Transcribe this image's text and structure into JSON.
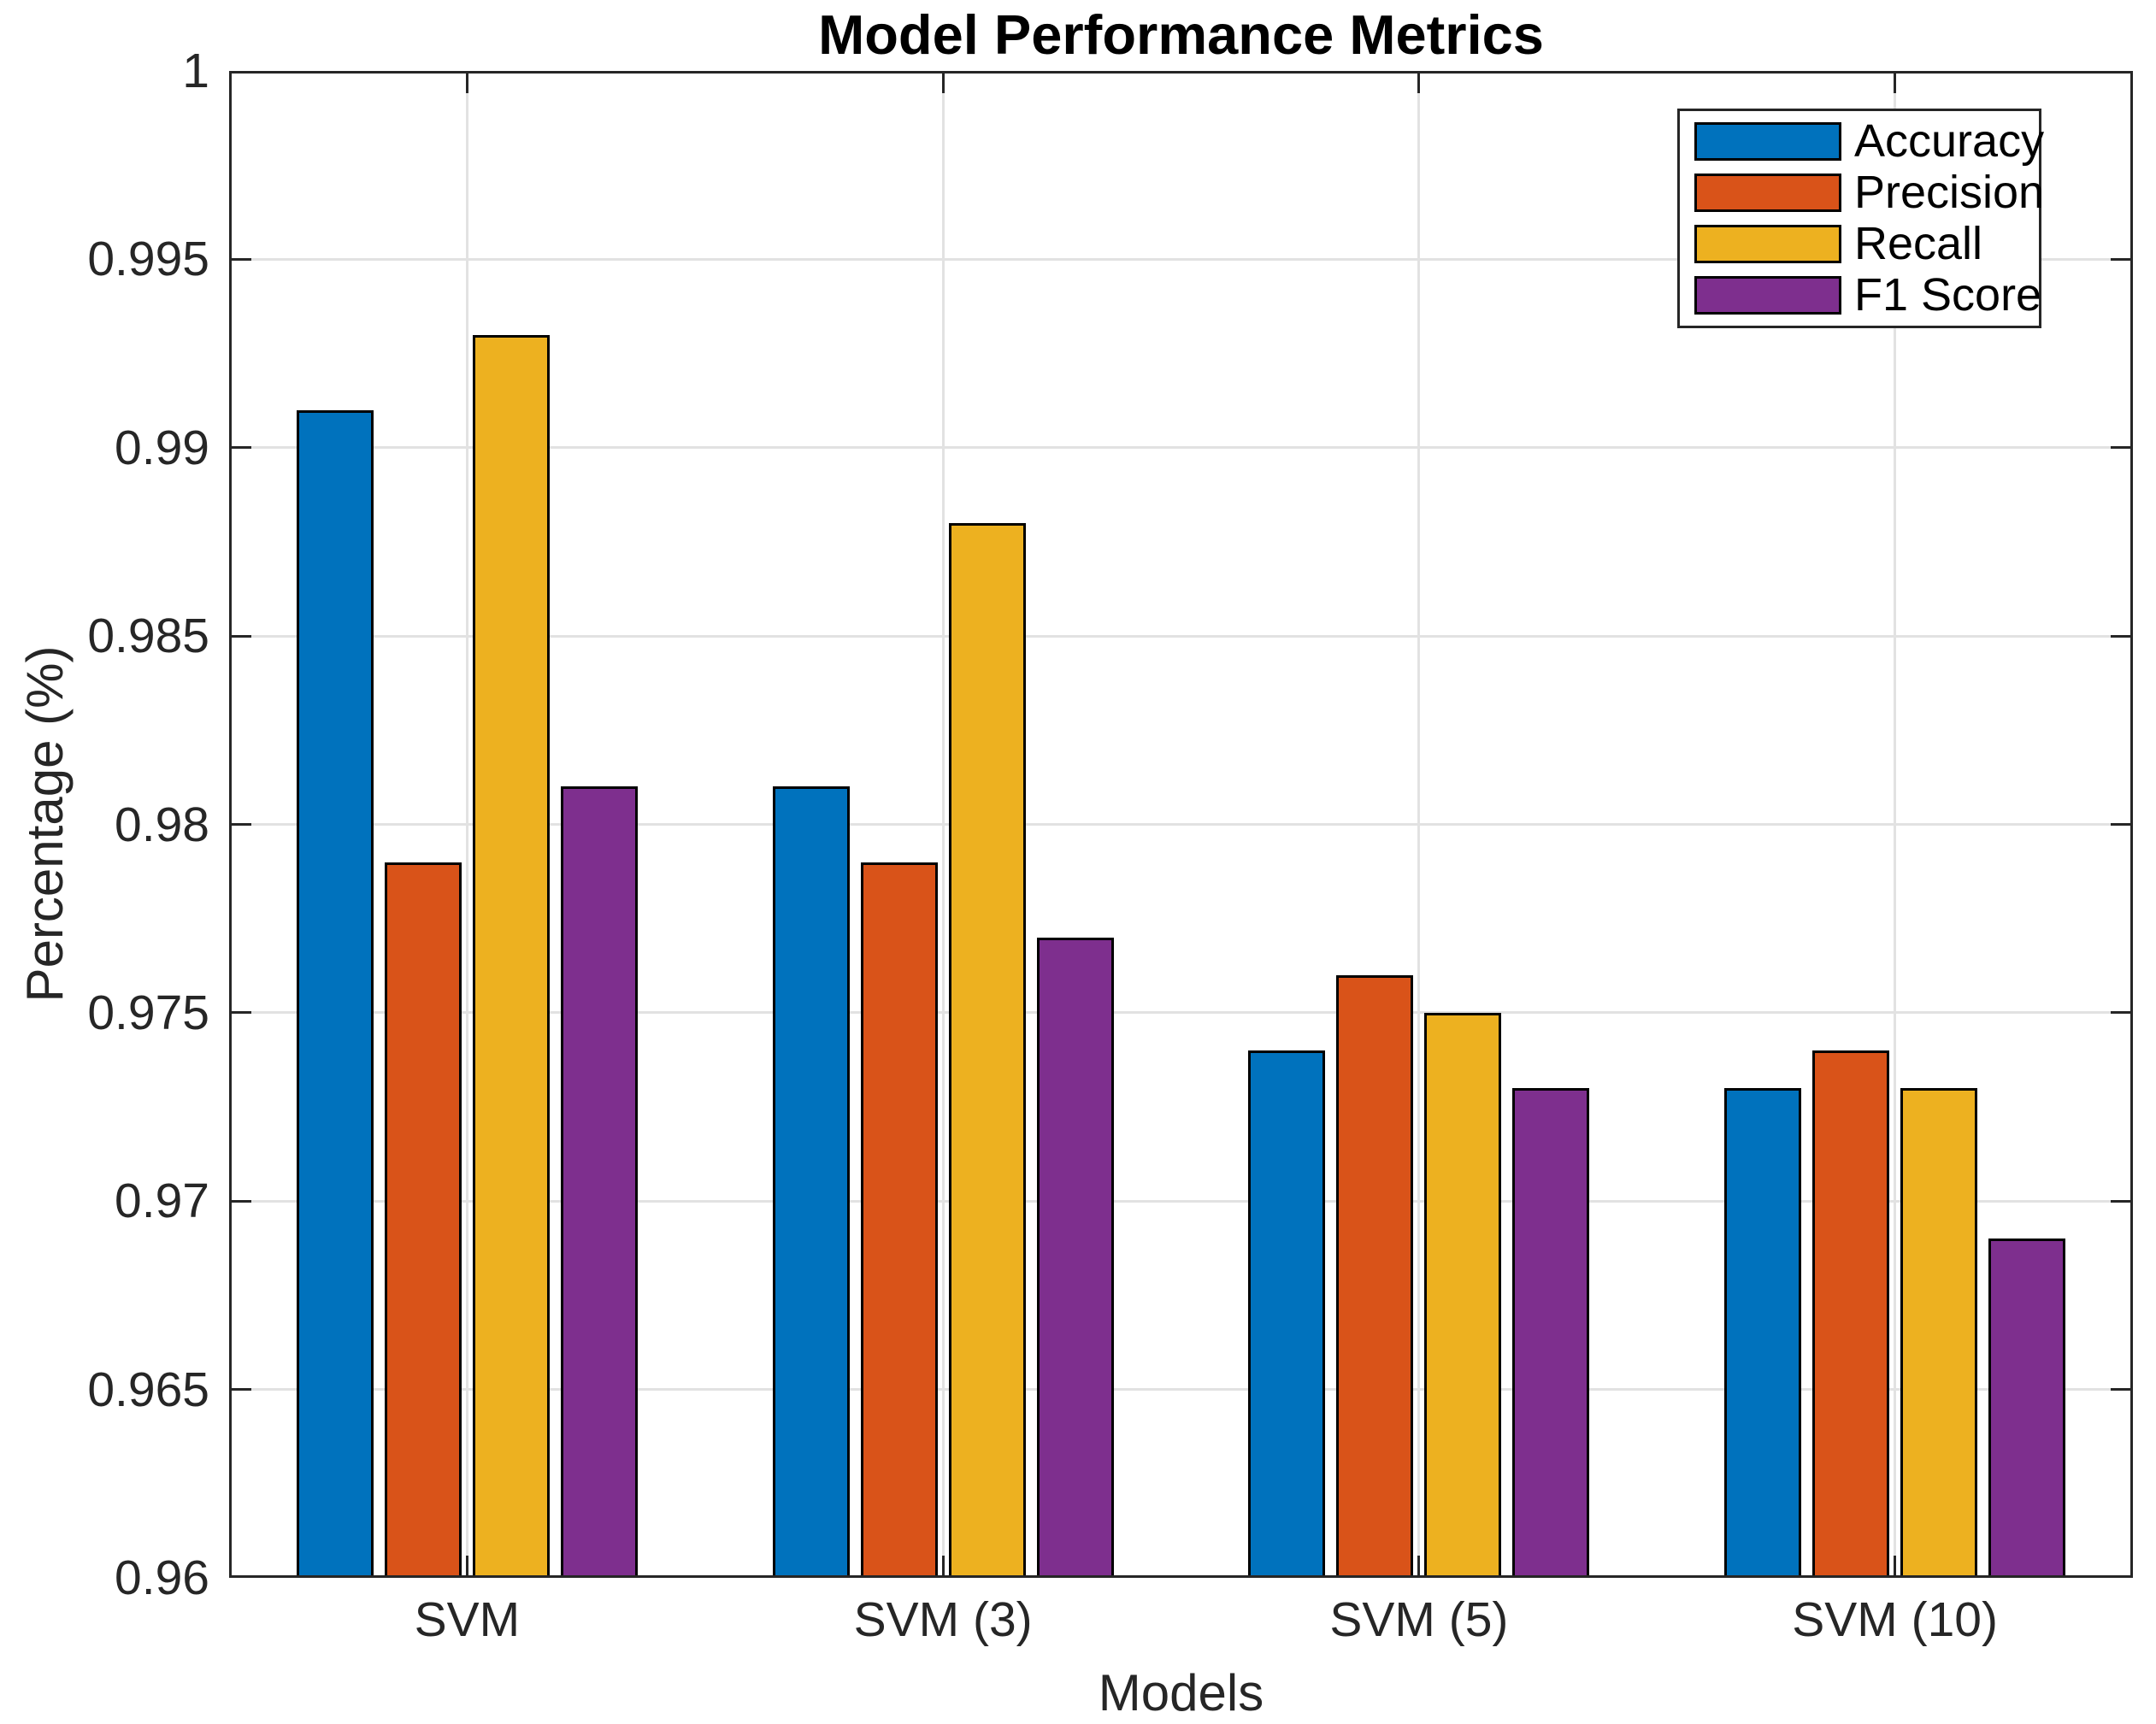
{
  "chart_data": {
    "type": "bar",
    "title": "Model Performance Metrics",
    "xlabel": "Models",
    "ylabel": "Percentage (%)",
    "categories": [
      "SVM",
      "SVM (3)",
      "SVM (5)",
      "SVM (10)"
    ],
    "series": [
      {
        "name": "Accuracy",
        "color": "#0072BD",
        "values": [
          0.991,
          0.981,
          0.974,
          0.973
        ]
      },
      {
        "name": "Precision",
        "color": "#D95319",
        "values": [
          0.979,
          0.979,
          0.976,
          0.974
        ]
      },
      {
        "name": "Recall",
        "color": "#EDB120",
        "values": [
          0.993,
          0.988,
          0.975,
          0.973
        ]
      },
      {
        "name": "F1 Score",
        "color": "#7E2F8E",
        "values": [
          0.981,
          0.977,
          0.973,
          0.969
        ]
      }
    ],
    "ylim": [
      0.96,
      1.0
    ],
    "ytick_step": 0.005,
    "ytick_labels": [
      "0.96",
      "0.965",
      "0.97",
      "0.975",
      "0.98",
      "0.985",
      "0.99",
      "0.995",
      "1"
    ],
    "grid": true,
    "legend": {
      "position": "top-right",
      "entries": [
        "Accuracy",
        "Precision",
        "Recall",
        "F1 Score"
      ]
    },
    "bar_edge_color": "#000000"
  },
  "style": {
    "background": "#FFFFFF",
    "axis_color": "#262626",
    "grid_color": "#E2E2E2",
    "title_color": "#000000"
  }
}
